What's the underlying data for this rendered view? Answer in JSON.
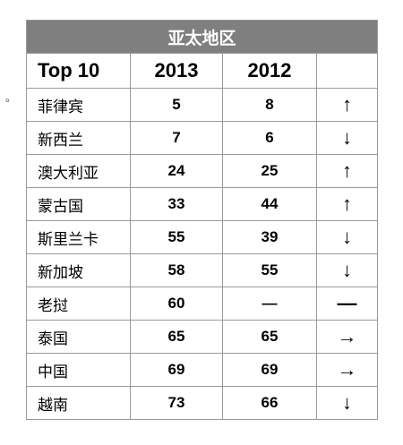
{
  "bullet": "。",
  "table": {
    "title": "亚太地区",
    "headers": [
      "Top 10",
      "2013",
      "2012",
      ""
    ],
    "rows": [
      {
        "country": "菲律宾",
        "y2013": "5",
        "y2012": "8",
        "trend": "up",
        "symbol": "↑"
      },
      {
        "country": "新西兰",
        "y2013": "7",
        "y2012": "6",
        "trend": "down",
        "symbol": "↓"
      },
      {
        "country": "澳大利亚",
        "y2013": "24",
        "y2012": "25",
        "trend": "up",
        "symbol": "↑"
      },
      {
        "country": "蒙古国",
        "y2013": "33",
        "y2012": "44",
        "trend": "up",
        "symbol": "↑"
      },
      {
        "country": "斯里兰卡",
        "y2013": "55",
        "y2012": "39",
        "trend": "down",
        "symbol": "↓"
      },
      {
        "country": "新加坡",
        "y2013": "58",
        "y2012": "55",
        "trend": "down",
        "symbol": "↓"
      },
      {
        "country": "老挝",
        "y2013": "60",
        "y2012": "—",
        "trend": "none",
        "symbol": "—"
      },
      {
        "country": "泰国",
        "y2013": "65",
        "y2012": "65",
        "trend": "same",
        "symbol": "→"
      },
      {
        "country": "中国",
        "y2013": "69",
        "y2012": "69",
        "trend": "same",
        "symbol": "→"
      },
      {
        "country": "越南",
        "y2013": "73",
        "y2012": "66",
        "trend": "down",
        "symbol": "↓"
      }
    ]
  },
  "colors": {
    "up": "#8fd14f",
    "down": "#e8242a",
    "same": "#808080",
    "title_bg": "#7f7f7f"
  }
}
